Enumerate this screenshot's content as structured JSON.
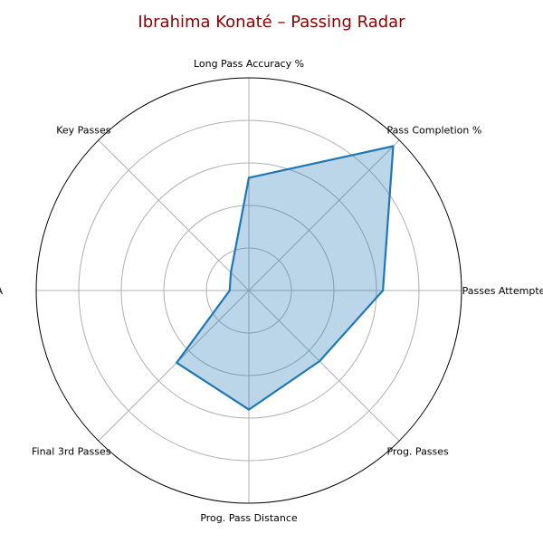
{
  "chart_data": {
    "type": "radar",
    "title": "Ibrahima Konaté – Passing Radar",
    "axes": [
      "Passes Attempted",
      "Pass Completion %",
      "Long Pass Accuracy %",
      "Key Passes",
      "xA",
      "Final 3rd Passes",
      "Prog. Pass Distance",
      "Prog. Passes"
    ],
    "series": [
      {
        "values": [
          0.63,
          0.96,
          0.53,
          0.12,
          0.09,
          0.48,
          0.56,
          0.47
        ]
      }
    ],
    "rlim": [
      0,
      1
    ],
    "grid_rings": [
      0.2,
      0.4,
      0.6,
      0.8
    ],
    "grid": true,
    "colors": {
      "title": "#8b0000",
      "line": "#1f77b4",
      "fill": "#b8d4e8",
      "grid": "#b0b0b0",
      "frame": "#000000"
    }
  }
}
